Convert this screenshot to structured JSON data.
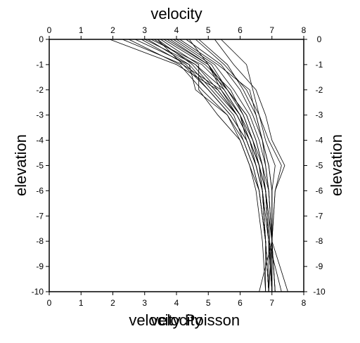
{
  "chart_data": {
    "type": "line",
    "title": "velocity",
    "xlabel_bottom_1": "velocity",
    "xlabel_bottom_2": "Poisson",
    "xlabel_bottom_3": "velocity",
    "ylabel_left": "elevation",
    "ylabel_right": "elevation",
    "xlim": [
      0,
      8
    ],
    "ylim": [
      -10,
      0
    ],
    "x_ticks": [
      "0",
      "1",
      "2",
      "3",
      "4",
      "5",
      "6",
      "7",
      "8"
    ],
    "y_ticks": [
      "0",
      "-1",
      "-2",
      "-3",
      "-4",
      "-5",
      "-6",
      "-7",
      "-8",
      "-9",
      "-10"
    ],
    "y_tick_values": [
      0,
      -1,
      -2,
      -3,
      -4,
      -5,
      -6,
      -7,
      -8,
      -9,
      -10
    ],
    "grid": false,
    "legend": "none",
    "line_color": "#000000",
    "series": [
      {
        "x": [
          1.9,
          4.0,
          5.3,
          5.9,
          6.3,
          6.6,
          6.8,
          6.9,
          7.0
        ],
        "y": [
          0,
          -1,
          -2,
          -3,
          -4,
          -5,
          -6,
          -7,
          -10
        ]
      },
      {
        "x": [
          2.3,
          4.2,
          5.0,
          5.7,
          6.2,
          6.5,
          6.7,
          6.8,
          6.9
        ],
        "y": [
          0,
          -1,
          -2,
          -3,
          -4,
          -5,
          -6,
          -8,
          -10
        ]
      },
      {
        "x": [
          2.7,
          4.4,
          5.1,
          5.8,
          6.1,
          6.4,
          6.6,
          6.8,
          6.9
        ],
        "y": [
          0,
          -1,
          -2,
          -3,
          -4,
          -5,
          -6,
          -8,
          -10
        ]
      },
      {
        "x": [
          3.0,
          4.6,
          5.5,
          6.0,
          6.3,
          6.5,
          6.7,
          6.9,
          7.0
        ],
        "y": [
          0,
          -1,
          -2,
          -3,
          -4,
          -5,
          -6,
          -8,
          -10
        ]
      },
      {
        "x": [
          3.2,
          4.8,
          5.6,
          6.2,
          6.5,
          6.7,
          6.8,
          6.9,
          7.0
        ],
        "y": [
          0,
          -1,
          -2,
          -3,
          -4,
          -5,
          -6,
          -8,
          -10
        ]
      },
      {
        "x": [
          3.4,
          4.5,
          5.2,
          5.9,
          6.3,
          6.6,
          6.7,
          6.9,
          6.9
        ],
        "y": [
          0,
          -1,
          -2,
          -3,
          -4,
          -5,
          -6,
          -8,
          -10
        ]
      },
      {
        "x": [
          3.6,
          4.9,
          5.7,
          6.1,
          6.4,
          6.7,
          6.8,
          7.0,
          7.0
        ],
        "y": [
          0,
          -1,
          -2,
          -3,
          -4,
          -5,
          -6,
          -8,
          -10
        ]
      },
      {
        "x": [
          3.8,
          5.0,
          5.4,
          6.0,
          6.2,
          6.5,
          6.7,
          6.8,
          6.9
        ],
        "y": [
          0,
          -1,
          -2,
          -3,
          -4,
          -5,
          -6,
          -8,
          -10
        ]
      },
      {
        "x": [
          4.0,
          5.2,
          5.8,
          6.3,
          6.6,
          6.8,
          6.9,
          7.0,
          7.1
        ],
        "y": [
          0,
          -1,
          -2,
          -3,
          -4,
          -5,
          -6,
          -8,
          -10
        ]
      },
      {
        "x": [
          4.3,
          5.4,
          6.0,
          6.4,
          6.7,
          6.9,
          7.0,
          7.0,
          7.1
        ],
        "y": [
          0,
          -1,
          -2,
          -3,
          -4,
          -5,
          -6,
          -8,
          -10
        ]
      },
      {
        "x": [
          4.6,
          5.5,
          6.2,
          6.6,
          6.9,
          7.3,
          7.1,
          7.0,
          7.1
        ],
        "y": [
          0,
          -1,
          -2,
          -3,
          -4,
          -5,
          -6,
          -8,
          -10
        ]
      },
      {
        "x": [
          5.2,
          5.8,
          6.5,
          6.8,
          7.0,
          7.4,
          7.1,
          7.0,
          6.9
        ],
        "y": [
          0,
          -1,
          -2,
          -3,
          -4,
          -5,
          -6,
          -8,
          -10
        ]
      },
      {
        "x": [
          5.4,
          6.2,
          6.4,
          6.6,
          6.8,
          7.1,
          7.0,
          7.0,
          7.0
        ],
        "y": [
          0,
          -1,
          -2,
          -3,
          -4,
          -5,
          -6,
          -8,
          -10
        ]
      },
      {
        "x": [
          3.1,
          4.4,
          4.6,
          5.6,
          6.0,
          6.3,
          6.5,
          6.7,
          6.8
        ],
        "y": [
          0,
          -1,
          -2,
          -3,
          -4,
          -5,
          -6,
          -8,
          -10
        ]
      },
      {
        "x": [
          3.5,
          4.7,
          4.7,
          5.3,
          6.0,
          6.3,
          6.6,
          6.8,
          6.9
        ],
        "y": [
          0,
          -1,
          -2,
          -3,
          -4,
          -5,
          -6,
          -8,
          -10
        ]
      },
      {
        "x": [
          2.5,
          4.1,
          4.8,
          5.6,
          6.1,
          6.4,
          6.6,
          6.8,
          6.9
        ],
        "y": [
          0,
          -1,
          -2,
          -3,
          -4,
          -5,
          -6,
          -8,
          -10
        ]
      },
      {
        "x": [
          3.3,
          4.6,
          5.3,
          5.9,
          6.3,
          6.6,
          6.8,
          6.9,
          7.3
        ],
        "y": [
          0,
          -1,
          -2,
          -3,
          -4,
          -5,
          -6,
          -8,
          -10
        ]
      },
      {
        "x": [
          3.9,
          5.1,
          5.6,
          6.1,
          6.4,
          6.6,
          6.8,
          6.9,
          7.0
        ],
        "y": [
          0,
          -1,
          -2,
          -3,
          -4,
          -5,
          -6,
          -8,
          -10
        ]
      },
      {
        "x": [
          4.1,
          5.3,
          6.3,
          6.5,
          6.7,
          6.8,
          6.9,
          7.0,
          6.6
        ],
        "y": [
          0,
          -1,
          -2,
          -3,
          -4,
          -5,
          -6,
          -8,
          -10
        ]
      },
      {
        "x": [
          3.7,
          5.0,
          5.6,
          6.2,
          6.5,
          6.7,
          6.9,
          7.0,
          7.5
        ],
        "y": [
          0,
          -1,
          -2,
          -3,
          -4,
          -5,
          -6,
          -8,
          -10
        ]
      },
      {
        "x": [
          2.9,
          4.3,
          5.0,
          5.7,
          6.2,
          6.5,
          6.7,
          6.8,
          6.8
        ],
        "y": [
          0,
          -1,
          -2,
          -3,
          -4,
          -5,
          -6,
          -8,
          -10
        ]
      },
      {
        "x": [
          4.4,
          5.0,
          5.5,
          6.0,
          6.4,
          6.6,
          6.8,
          6.9,
          7.0
        ],
        "y": [
          0,
          -1,
          -2,
          -3,
          -4,
          -5,
          -6,
          -8,
          -10
        ]
      },
      {
        "x": [
          4.7,
          5.6,
          6.1,
          6.5,
          6.7,
          6.9,
          7.0,
          7.0,
          7.0
        ],
        "y": [
          0,
          -1,
          -2,
          -3,
          -4,
          -5,
          -6,
          -8,
          -10
        ]
      },
      {
        "x": [
          3.4,
          4.2,
          5.4,
          5.9,
          6.3,
          6.6,
          6.7,
          6.8,
          6.9
        ],
        "y": [
          0,
          -1,
          -2,
          -3,
          -4,
          -5,
          -6,
          -8,
          -10
        ]
      }
    ]
  }
}
